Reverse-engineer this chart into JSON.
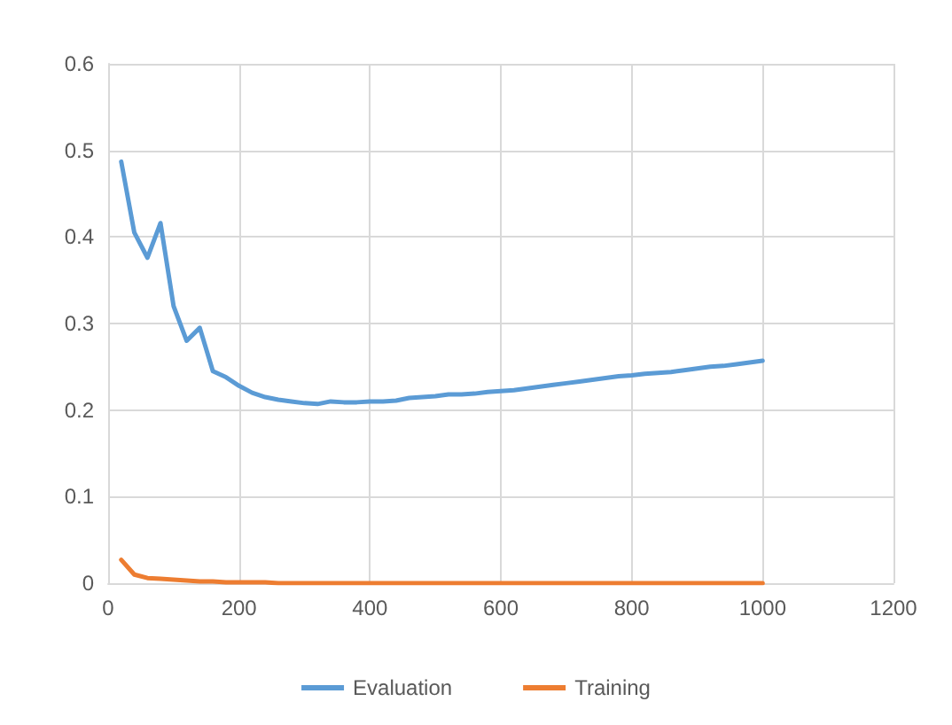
{
  "chart_data": {
    "type": "line",
    "x": [
      20,
      40,
      60,
      80,
      100,
      120,
      140,
      160,
      180,
      200,
      220,
      240,
      260,
      280,
      300,
      320,
      340,
      360,
      380,
      400,
      420,
      440,
      460,
      480,
      500,
      520,
      540,
      560,
      580,
      600,
      620,
      640,
      660,
      680,
      700,
      720,
      740,
      760,
      780,
      800,
      820,
      840,
      860,
      880,
      900,
      920,
      940,
      960,
      980,
      1000
    ],
    "series": [
      {
        "name": "Evaluation",
        "color": "#5b9bd5",
        "values": [
          0.487,
          0.405,
          0.376,
          0.416,
          0.32,
          0.28,
          0.295,
          0.245,
          0.238,
          0.228,
          0.22,
          0.215,
          0.212,
          0.21,
          0.208,
          0.207,
          0.21,
          0.209,
          0.209,
          0.21,
          0.21,
          0.211,
          0.214,
          0.215,
          0.216,
          0.218,
          0.218,
          0.219,
          0.221,
          0.222,
          0.223,
          0.225,
          0.227,
          0.229,
          0.231,
          0.233,
          0.235,
          0.237,
          0.239,
          0.24,
          0.242,
          0.243,
          0.244,
          0.246,
          0.248,
          0.25,
          0.251,
          0.253,
          0.255,
          0.257
        ]
      },
      {
        "name": "Training",
        "color": "#ed7d31",
        "values": [
          0.027,
          0.01,
          0.006,
          0.005,
          0.004,
          0.003,
          0.002,
          0.002,
          0.001,
          0.001,
          0.001,
          0.001,
          0,
          0,
          0,
          0,
          0,
          0,
          0,
          0,
          0,
          0,
          0,
          0,
          0,
          0,
          0,
          0,
          0,
          0,
          0,
          0,
          0,
          0,
          0,
          0,
          0,
          0,
          0,
          0,
          0,
          0,
          0,
          0,
          0,
          0,
          0,
          0,
          0,
          0
        ]
      }
    ],
    "xlim": [
      0,
      1200
    ],
    "xticks": [
      0,
      200,
      400,
      600,
      800,
      1000,
      1200
    ],
    "ylim": [
      0,
      0.6
    ],
    "yticks": [
      0,
      0.1,
      0.2,
      0.3,
      0.4,
      0.5,
      0.6
    ],
    "grid": true,
    "legend": "bottom",
    "marker": "none",
    "line_style": "solid"
  }
}
